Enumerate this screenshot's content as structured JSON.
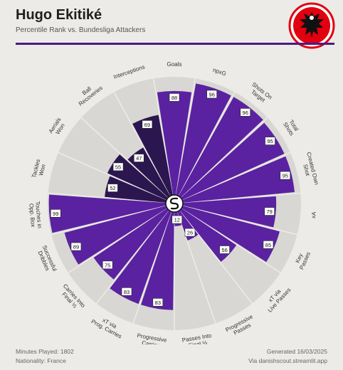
{
  "header": {
    "title": "Hugo Ekitiké",
    "subtitle": "Percentile Rank vs. Bundesliga Attackers"
  },
  "colors": {
    "accent": "#4b1b82",
    "bar_light": "#5a22a0",
    "bar_dark": "#2b1650",
    "ring": "#d8d7d3",
    "background": "#ecebe8",
    "logo_red": "#e1000f"
  },
  "icons": {
    "club_logo": "eintracht-frankfurt-eagle-icon",
    "center": "danishscout-logo-icon"
  },
  "chart_data": {
    "type": "polar-bar",
    "title": "Hugo Ekitiké",
    "subtitle": "Percentile Rank vs. Bundesliga Attackers",
    "rlim": [
      0,
      100
    ],
    "grid": true,
    "series": [
      {
        "label": "Goals",
        "value": 88,
        "group": "attack"
      },
      {
        "label": "npxG",
        "value": 96,
        "group": "attack"
      },
      {
        "label": "Shots On Target",
        "value": 96,
        "group": "attack"
      },
      {
        "label": "Total Shots",
        "value": 95,
        "group": "attack"
      },
      {
        "label": "Created Own Shot",
        "value": 95,
        "group": "attack"
      },
      {
        "label": "xA",
        "value": 79,
        "group": "attack"
      },
      {
        "label": "Key Passes",
        "value": 85,
        "group": "attack"
      },
      {
        "label": "xT via Live Passes",
        "value": 56,
        "group": "possession"
      },
      {
        "label": "Progressive Passes",
        "value": 26,
        "group": "possession"
      },
      {
        "label": "Passes Into Final ⅓",
        "value": 12,
        "group": "possession"
      },
      {
        "label": "Progressive Carries",
        "value": 83,
        "group": "attack"
      },
      {
        "label": "xT via Prog. Carries",
        "value": 83,
        "group": "attack"
      },
      {
        "label": "Carries Into Final ⅓",
        "value": 75,
        "group": "attack"
      },
      {
        "label": "Successful Dribbles",
        "value": 89,
        "group": "attack"
      },
      {
        "label": "Touches in Opp. Box",
        "value": 99,
        "group": "attack"
      },
      {
        "label": "Tackles Won",
        "value": 52,
        "group": "defence"
      },
      {
        "label": "Aerials Won",
        "value": 55,
        "group": "defence"
      },
      {
        "label": "Ball Recoveries",
        "value": 47,
        "group": "defence"
      },
      {
        "label": "Interceptions",
        "value": 69,
        "group": "defence"
      }
    ]
  },
  "footer": {
    "minutes": "Minutes Played: 1802",
    "nationality": "Nationality: France",
    "generated": "Generated 16/03/2025",
    "source": "Via danishscout.streamlit.app"
  }
}
